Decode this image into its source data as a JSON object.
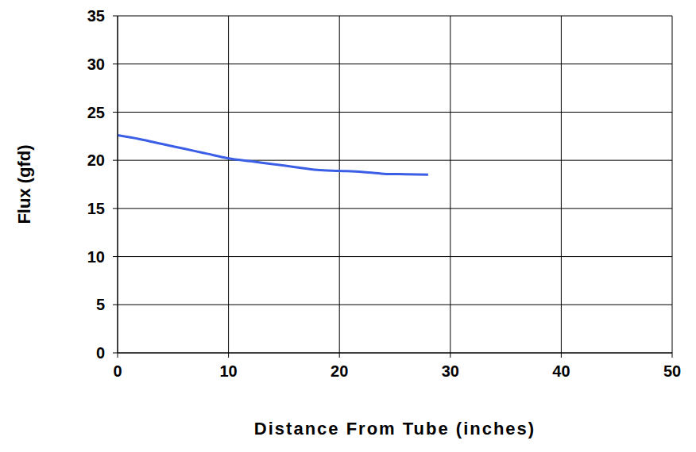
{
  "chart_data": {
    "type": "line",
    "x_label": "Distance From Tube (inches)",
    "y_label": "Flux (gfd)",
    "x": [
      0,
      2,
      4,
      6,
      8,
      10,
      12,
      14,
      16,
      18,
      20,
      22,
      24,
      26,
      28
    ],
    "values": [
      22.6,
      22.2,
      21.7,
      21.2,
      20.7,
      20.2,
      19.9,
      19.6,
      19.3,
      19.0,
      18.9,
      18.8,
      18.6,
      18.55,
      18.5
    ],
    "color": "#3a5fe6",
    "marker": "none",
    "xlim": [
      0,
      50
    ],
    "xticks": [
      0,
      10,
      20,
      30,
      40,
      50
    ],
    "ylim": [
      0,
      35
    ],
    "yticks": [
      0,
      5,
      10,
      15,
      20,
      25,
      30,
      35
    ],
    "grid": true
  }
}
